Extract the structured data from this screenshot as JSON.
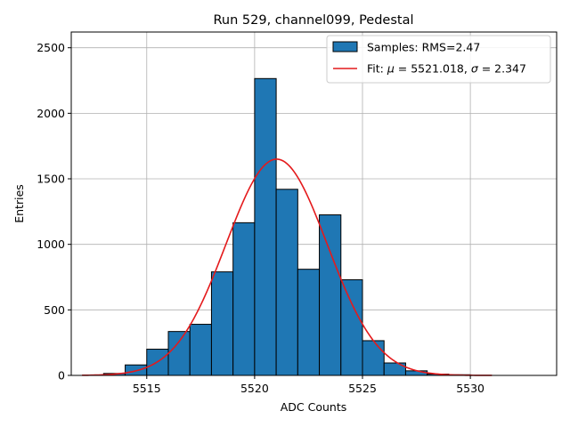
{
  "chart_data": {
    "type": "bar",
    "title": "Run 529, channel099, Pedestal",
    "xlabel": "ADC Counts",
    "ylabel": "Entries",
    "xlim": [
      5511.5,
      5534
    ],
    "ylim": [
      0,
      2620
    ],
    "xticks": [
      5515,
      5520,
      5525,
      5530
    ],
    "yticks": [
      0,
      500,
      1000,
      1500,
      2000,
      2500
    ],
    "grid": true,
    "legend_position": "top-right",
    "histogram": {
      "name": "Samples: RMS=2.47",
      "color": "#1f77b4",
      "bin_edges": [
        5513,
        5514,
        5515,
        5516,
        5517,
        5518,
        5519,
        5520,
        5521,
        5522,
        5523,
        5524,
        5525,
        5526,
        5527,
        5528,
        5529,
        5530
      ],
      "counts": [
        15,
        80,
        200,
        335,
        390,
        790,
        1165,
        2265,
        1420,
        810,
        1225,
        730,
        265,
        95,
        35,
        10,
        5
      ]
    },
    "fit": {
      "name_prefix": "Fit: ",
      "mu_symbol": "μ",
      "mu_text": " = 5521.018, ",
      "sigma_symbol": "σ",
      "sigma_text": " = 2.347",
      "mu": 5521.018,
      "sigma": 2.347,
      "amplitude": 1650,
      "x_range": [
        5512,
        5531
      ],
      "color": "#e41a1c"
    }
  }
}
